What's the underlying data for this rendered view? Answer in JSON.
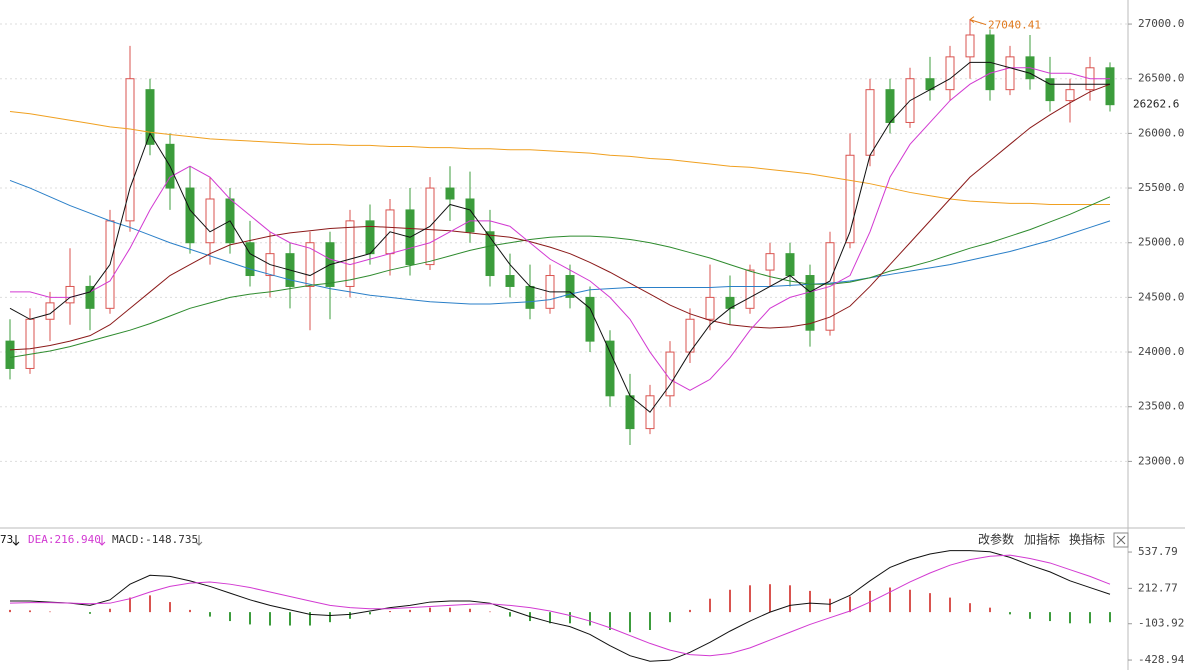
{
  "chart_data": [
    {
      "type": "candlestick",
      "ylim": [
        22400,
        27220
      ],
      "yticks": [
        {
          "value": 23000,
          "label": "23000.0"
        },
        {
          "value": 23500,
          "label": "23500.0"
        },
        {
          "value": 24000,
          "label": "24000.0"
        },
        {
          "value": 24500,
          "label": "24500.0"
        },
        {
          "value": 25000,
          "label": "25000.0"
        },
        {
          "value": 25500,
          "label": "25500.0"
        },
        {
          "value": 26000,
          "label": "26000.0"
        },
        {
          "value": 26500,
          "label": "26500.0"
        },
        {
          "value": 27000,
          "label": "27000.0"
        }
      ],
      "grid": true,
      "up_color": "#d9534f",
      "down_color": "#3c9c3c",
      "annotation_color": "#e07a1f",
      "open": [
        24100,
        23850,
        24300,
        24450,
        24600,
        24400,
        25200,
        26400,
        25900,
        25500,
        25000,
        25400,
        25000,
        24700,
        24900,
        24600,
        25000,
        24600,
        25200,
        24900,
        25300,
        24800,
        25500,
        25400,
        25100,
        24700,
        24600,
        24400,
        24700,
        24500,
        24100,
        23600,
        23300,
        23600,
        24000,
        24300,
        24500,
        24400,
        24750,
        24900,
        24700,
        24200,
        25000,
        25800,
        26400,
        26100,
        26500,
        26400,
        26700,
        26900,
        26400,
        26700,
        26500,
        26300,
        26400,
        26600
      ],
      "high": [
        24300,
        24400,
        24550,
        24950,
        24700,
        25300,
        26800,
        26500,
        26000,
        25700,
        25600,
        25500,
        25200,
        25100,
        25000,
        25100,
        25100,
        25300,
        25350,
        25400,
        25500,
        25600,
        25700,
        25650,
        25300,
        24900,
        24800,
        24800,
        24800,
        24600,
        24200,
        23800,
        23700,
        24100,
        24400,
        24800,
        24700,
        24800,
        25000,
        25000,
        24800,
        25100,
        26000,
        26500,
        26500,
        26600,
        26700,
        26800,
        27040.41,
        26950,
        26800,
        26900,
        26700,
        26500,
        26700,
        26650
      ],
      "low": [
        23750,
        23800,
        24100,
        24250,
        24200,
        24350,
        25100,
        25800,
        25300,
        24900,
        24800,
        24900,
        24600,
        24500,
        24400,
        24200,
        24300,
        24500,
        24800,
        24700,
        24700,
        24750,
        25200,
        25000,
        24600,
        24500,
        24300,
        24350,
        24400,
        24000,
        23500,
        23150,
        23250,
        23500,
        23900,
        24200,
        24250,
        24350,
        24600,
        24600,
        24050,
        24150,
        24950,
        25700,
        26000,
        26050,
        26300,
        26300,
        26500,
        26300,
        26350,
        26400,
        26200,
        26100,
        26300,
        26200
      ],
      "close": [
        23850,
        24300,
        24450,
        24600,
        24400,
        25200,
        26500,
        25900,
        25500,
        25000,
        25400,
        25000,
        24700,
        24900,
        24600,
        25000,
        24600,
        25200,
        24900,
        25300,
        24800,
        25500,
        25400,
        25100,
        24700,
        24600,
        24400,
        24700,
        24500,
        24100,
        23600,
        23300,
        23600,
        24000,
        24300,
        24500,
        24400,
        24750,
        24900,
        24700,
        24200,
        25000,
        25800,
        26400,
        26100,
        26500,
        26400,
        26700,
        26900,
        26400,
        26700,
        26500,
        26300,
        26400,
        26600,
        26262.6
      ],
      "lines": [
        {
          "color": "#f0a020",
          "values": [
            26200,
            26180,
            26150,
            26120,
            26090,
            26060,
            26040,
            26010,
            25990,
            25970,
            25950,
            25940,
            25930,
            25920,
            25910,
            25900,
            25900,
            25890,
            25890,
            25880,
            25880,
            25870,
            25870,
            25860,
            25860,
            25850,
            25850,
            25840,
            25830,
            25820,
            25800,
            25790,
            25770,
            25760,
            25740,
            25720,
            25700,
            25690,
            25670,
            25650,
            25630,
            25600,
            25570,
            25540,
            25500,
            25460,
            25430,
            25400,
            25380,
            25370,
            25360,
            25360,
            25350,
            25350,
            25350,
            25350
          ]
        },
        {
          "color": "#2a7fc8",
          "values": [
            25570,
            25500,
            25420,
            25340,
            25270,
            25200,
            25140,
            25070,
            25000,
            24940,
            24880,
            24820,
            24760,
            24710,
            24660,
            24620,
            24580,
            24550,
            24520,
            24500,
            24480,
            24460,
            24450,
            24440,
            24440,
            24450,
            24460,
            24480,
            24530,
            24570,
            24580,
            24590,
            24590,
            24590,
            24590,
            24590,
            24600,
            24600,
            24600,
            24610,
            24620,
            24630,
            24650,
            24680,
            24710,
            24740,
            24770,
            24800,
            24840,
            24880,
            24920,
            24970,
            25020,
            25080,
            25140,
            25200
          ]
        },
        {
          "color": "#2e8b2e",
          "values": [
            23950,
            23980,
            24010,
            24050,
            24100,
            24150,
            24200,
            24260,
            24330,
            24400,
            24450,
            24500,
            24530,
            24550,
            24580,
            24610,
            24630,
            24660,
            24700,
            24750,
            24790,
            24830,
            24880,
            24930,
            24970,
            25000,
            25030,
            25050,
            25060,
            25060,
            25050,
            25030,
            25000,
            24960,
            24910,
            24860,
            24800,
            24740,
            24690,
            24650,
            24620,
            24620,
            24640,
            24680,
            24740,
            24780,
            24830,
            24890,
            24950,
            25000,
            25060,
            25120,
            25190,
            25260,
            25340,
            25420
          ]
        },
        {
          "color": "#8b1a1a",
          "values": [
            24020,
            24030,
            24060,
            24100,
            24150,
            24250,
            24400,
            24550,
            24700,
            24800,
            24900,
            24980,
            25020,
            25060,
            25090,
            25110,
            25130,
            25140,
            25150,
            25140,
            25130,
            25120,
            25110,
            25090,
            25070,
            25050,
            25010,
            24960,
            24900,
            24820,
            24730,
            24630,
            24530,
            24430,
            24350,
            24290,
            24250,
            24230,
            24220,
            24230,
            24260,
            24320,
            24420,
            24600,
            24800,
            25000,
            25200,
            25400,
            25600,
            25750,
            25900,
            26050,
            26170,
            26280,
            26380,
            26450
          ]
        },
        {
          "color": "#d23ad2",
          "values": [
            24550,
            24550,
            24500,
            24500,
            24550,
            24650,
            24950,
            25300,
            25600,
            25700,
            25600,
            25400,
            25250,
            25100,
            25000,
            24950,
            24850,
            24800,
            24850,
            24900,
            24950,
            25000,
            25100,
            25200,
            25200,
            25150,
            25000,
            24850,
            24750,
            24650,
            24500,
            24300,
            24000,
            23750,
            23650,
            23750,
            23950,
            24200,
            24400,
            24500,
            24550,
            24600,
            24700,
            25100,
            25600,
            25900,
            26100,
            26300,
            26450,
            26550,
            26600,
            26600,
            26550,
            26550,
            26500,
            26500
          ]
        },
        {
          "color": "#111111",
          "values": [
            24400,
            24300,
            24350,
            24500,
            24550,
            24800,
            25500,
            26000,
            25700,
            25300,
            25100,
            25200,
            24900,
            24800,
            24750,
            24700,
            24800,
            24850,
            24900,
            25100,
            25050,
            25150,
            25350,
            25300,
            25050,
            24800,
            24600,
            24550,
            24550,
            24400,
            24000,
            23600,
            23450,
            23700,
            24000,
            24250,
            24400,
            24500,
            24600,
            24700,
            24550,
            24650,
            25100,
            25800,
            26100,
            26300,
            26400,
            26500,
            26650,
            26650,
            26600,
            26550,
            26450,
            26450,
            26450,
            26450
          ]
        }
      ]
    },
    {
      "type": "macd",
      "ylim": [
        -518,
        735
      ],
      "yticks": [
        537.79,
        212.77,
        -103.92,
        -428.94
      ],
      "legend": [
        "73",
        "DEA:216.940",
        "MACD:-148.735"
      ],
      "legend_colors": [
        "#111111",
        "#d23ad2",
        "#333333"
      ],
      "buttons": [
        "改参数",
        "加指标",
        "换指标"
      ],
      "hist_up_color": "#d9534f",
      "hist_down_color": "#3c9c3c",
      "hist": [
        20,
        15,
        5,
        0,
        -15,
        30,
        130,
        150,
        90,
        20,
        -40,
        -80,
        -110,
        -120,
        -120,
        -120,
        -90,
        -60,
        -20,
        10,
        20,
        40,
        40,
        30,
        5,
        -40,
        -80,
        -100,
        -100,
        -120,
        -160,
        -180,
        -160,
        -90,
        20,
        120,
        200,
        240,
        250,
        240,
        190,
        120,
        140,
        190,
        220,
        200,
        170,
        130,
        80,
        40,
        -20,
        -60,
        -80,
        -100,
        -100,
        -90
      ],
      "series": [
        {
          "color": "#111111",
          "values": [
            100,
            100,
            90,
            80,
            60,
            110,
            250,
            330,
            320,
            280,
            230,
            170,
            110,
            60,
            20,
            -20,
            -30,
            -20,
            10,
            40,
            60,
            90,
            100,
            100,
            80,
            20,
            -40,
            -90,
            -130,
            -200,
            -300,
            -390,
            -440,
            -430,
            -360,
            -270,
            -170,
            -80,
            0,
            60,
            80,
            70,
            150,
            280,
            400,
            470,
            520,
            550,
            550,
            540,
            490,
            420,
            360,
            280,
            220,
            160
          ]
        },
        {
          "color": "#d23ad2",
          "values": [
            80,
            85,
            85,
            80,
            75,
            80,
            120,
            180,
            230,
            260,
            270,
            250,
            220,
            180,
            140,
            100,
            60,
            40,
            30,
            30,
            40,
            50,
            60,
            70,
            75,
            60,
            40,
            10,
            -30,
            -80,
            -140,
            -210,
            -280,
            -340,
            -380,
            -390,
            -370,
            -320,
            -250,
            -180,
            -110,
            -50,
            10,
            90,
            180,
            270,
            350,
            420,
            470,
            500,
            510,
            480,
            440,
            380,
            320,
            250
          ]
        }
      ]
    }
  ]
}
